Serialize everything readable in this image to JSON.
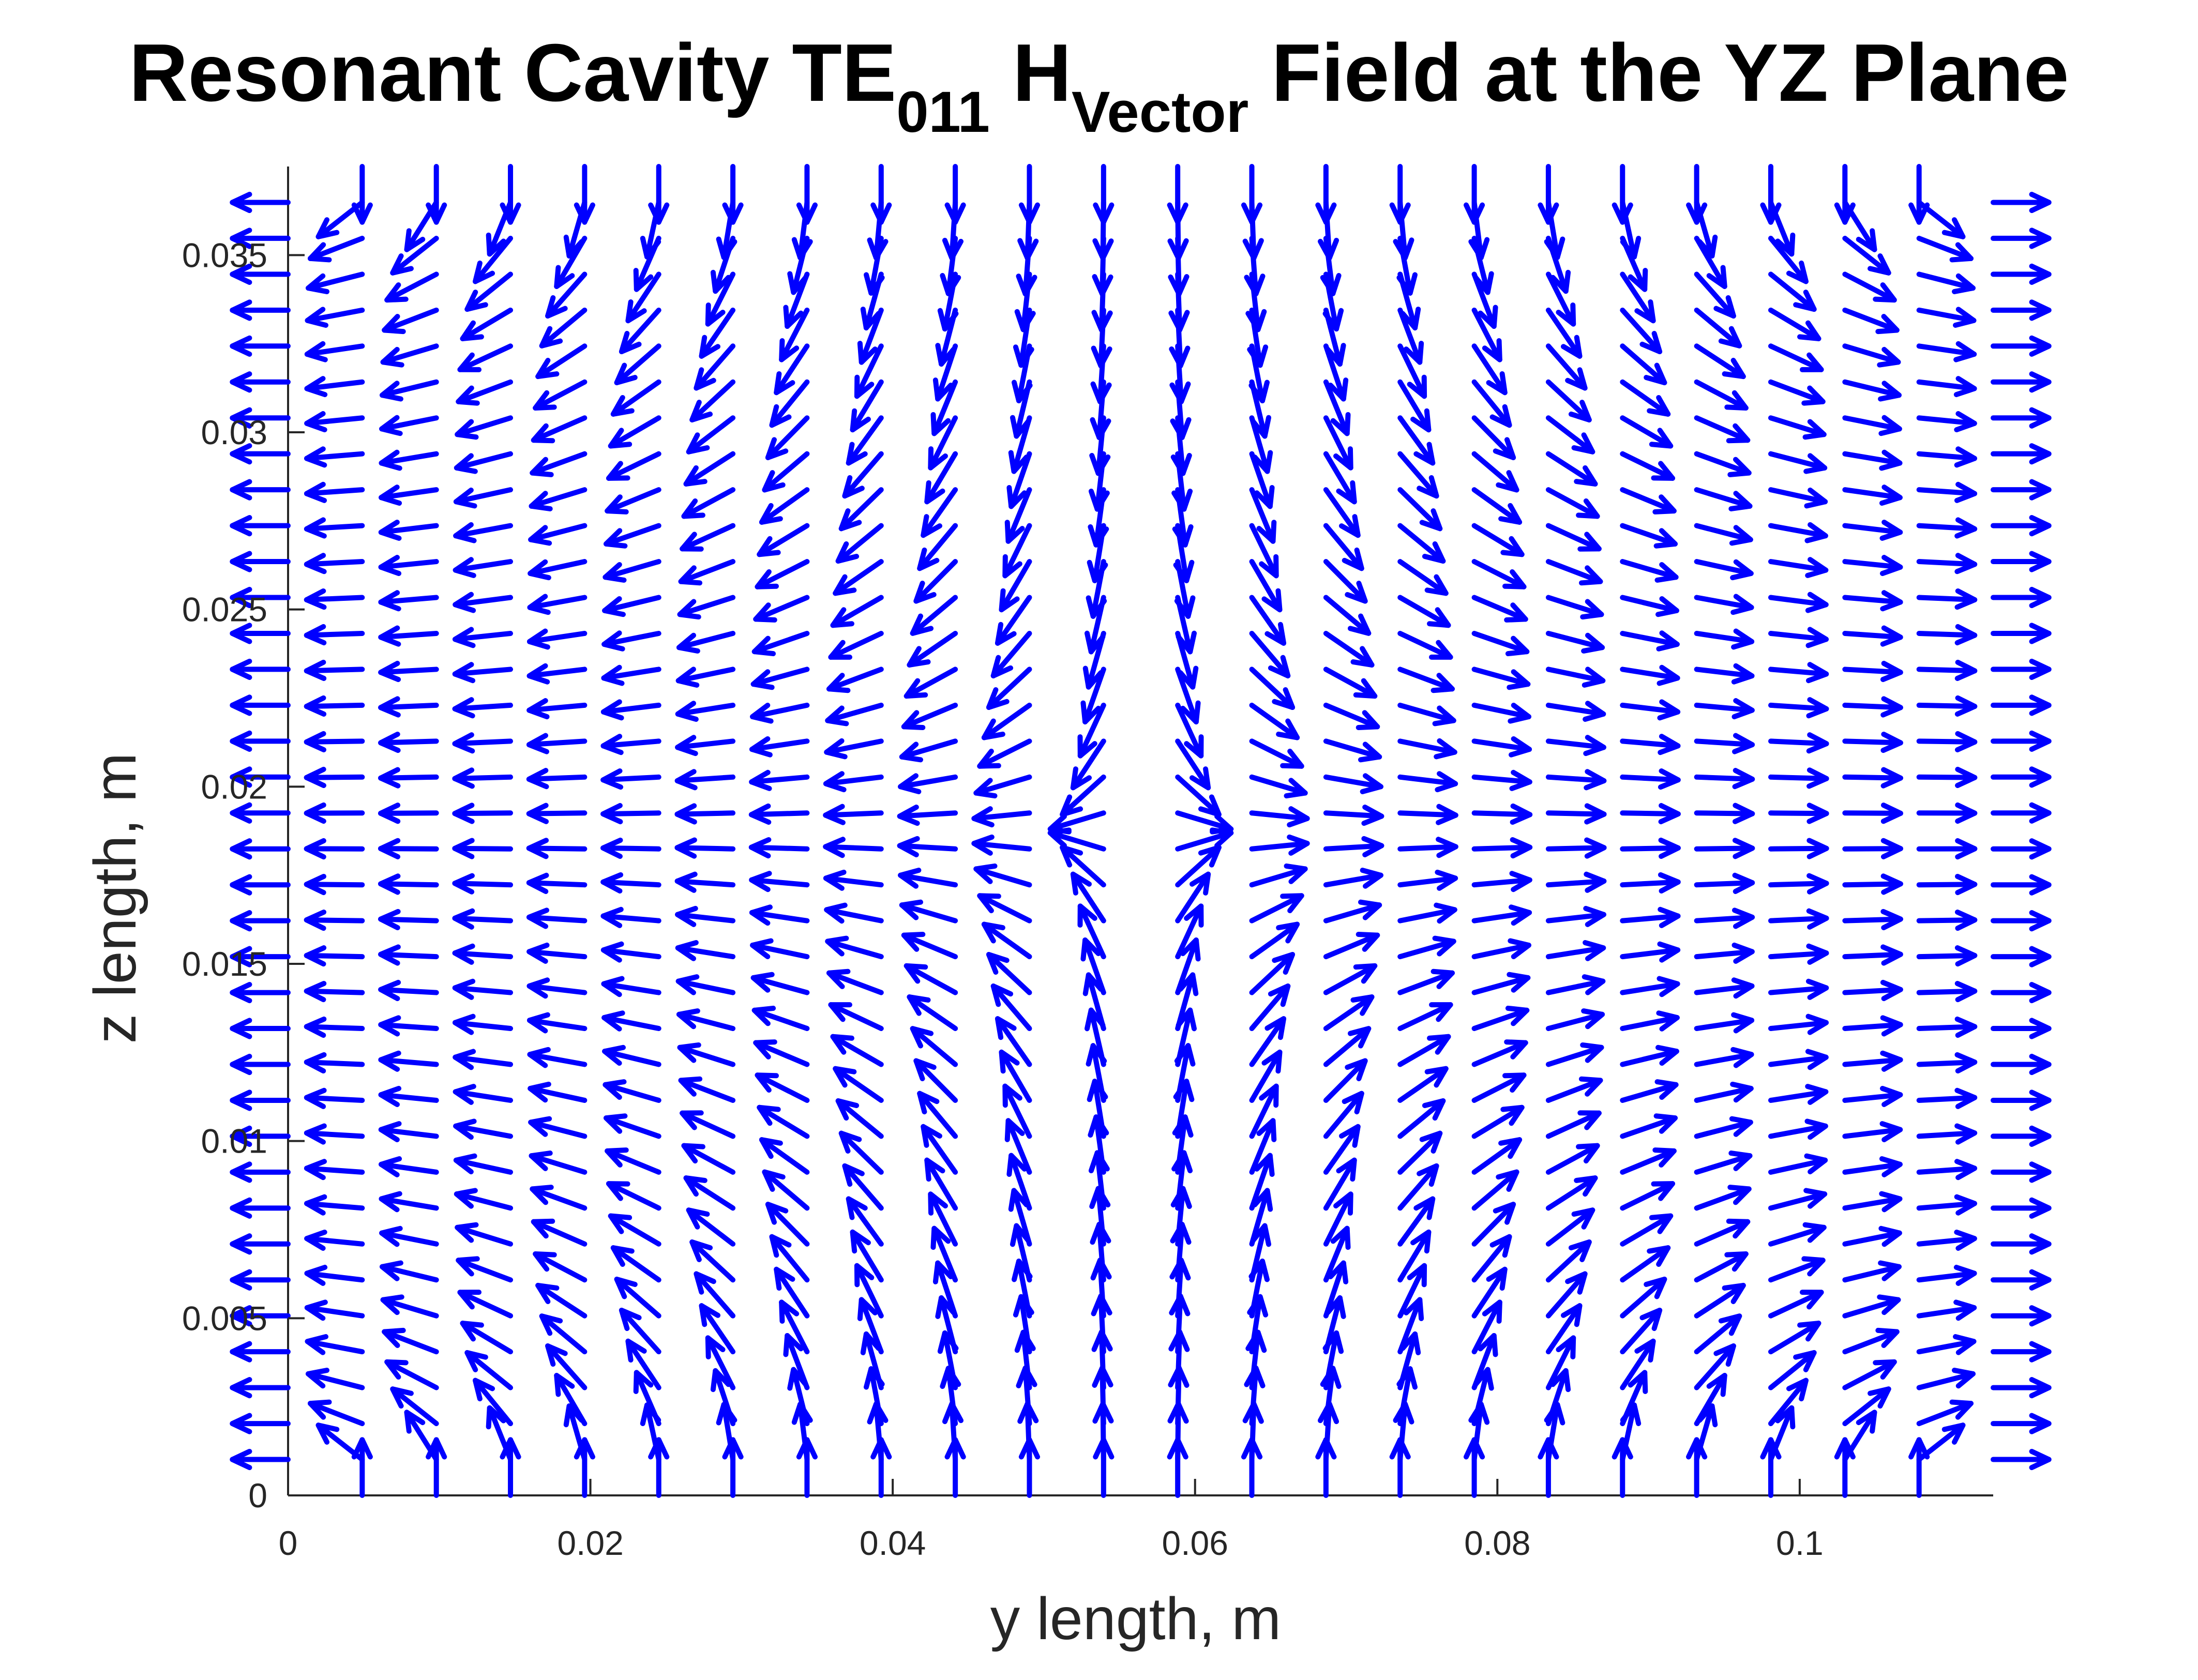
{
  "chart_data": {
    "type": "quiver",
    "title": {
      "main": "Resonant Cavity TE",
      "sub1": "011",
      "mid": " H",
      "sub2": "Vector",
      "tail": " Field at the YZ Plane"
    },
    "xlabel": "y length, m",
    "ylabel": "z length, m",
    "xlim": [
      0,
      0.1128
    ],
    "ylim": [
      0,
      0.0375
    ],
    "xticks": [
      0,
      0.02,
      0.04,
      0.06,
      0.08,
      0.1
    ],
    "xtick_labels": [
      "0",
      "0.02",
      "0.04",
      "0.06",
      "0.08",
      "0.1"
    ],
    "yticks": [
      0,
      0.005,
      0.01,
      0.015,
      0.02,
      0.025,
      0.03,
      0.035
    ],
    "ytick_labels": [
      "0",
      "0.005",
      "0.01",
      "0.015",
      "0.02",
      "0.025",
      "0.03",
      "0.035"
    ],
    "field": {
      "mode": "TE011",
      "u": "-cos(pi*y/b)*sin(pi*z/d)",
      "v": "sin(pi*y/b)*cos(pi*z/d)",
      "b": 0.1128,
      "d": 0.0375,
      "ny": 24,
      "nz": 38
    },
    "arrow_color": "#0000ff",
    "grid": false
  }
}
